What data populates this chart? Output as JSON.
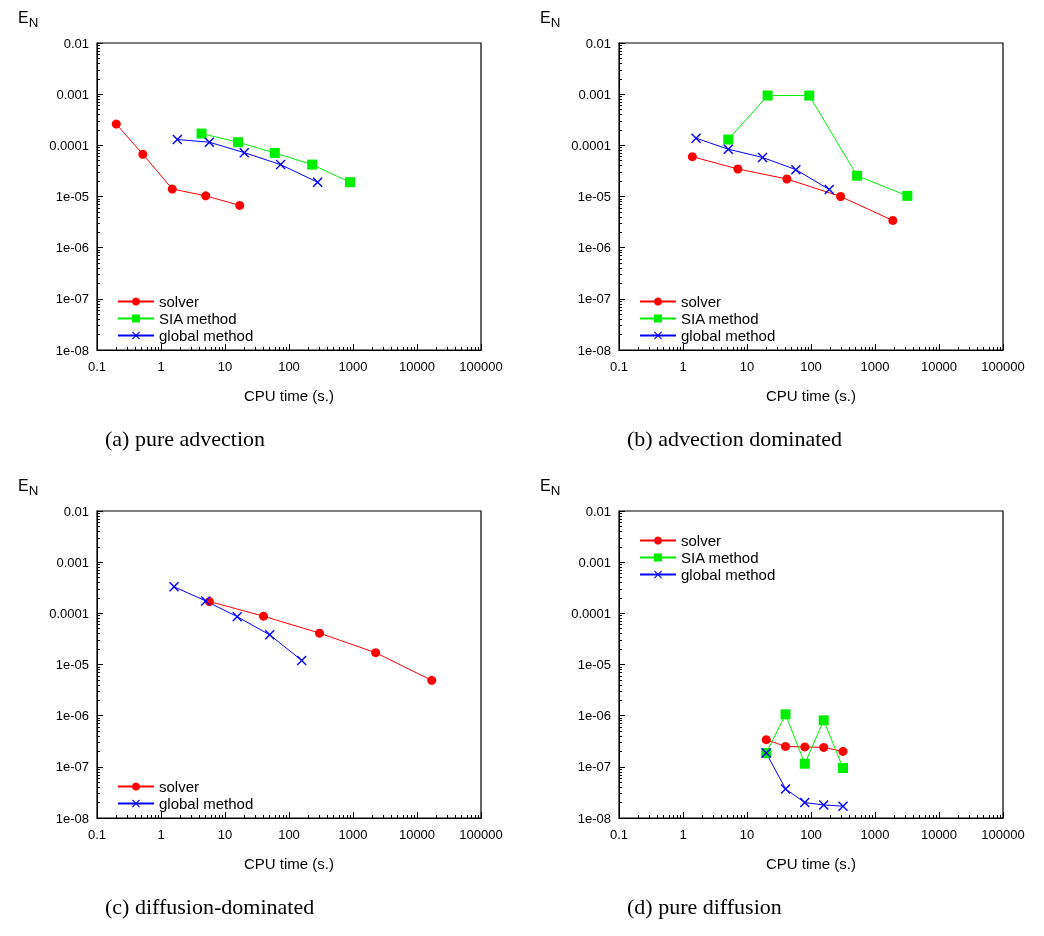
{
  "chart_data": [
    {
      "type": "line",
      "title": "(a) pure advection",
      "xlabel": "CPU time (s.)",
      "ylabel": "E$_{N}$",
      "log": "xy",
      "legend": "bottom left",
      "xlim": [
        0.1,
        100000
      ],
      "xticks": [
        0.1,
        1,
        10,
        100,
        1000,
        10000,
        100000
      ],
      "ylim": [
        1e-08,
        0.01
      ],
      "yticks": [
        {
          "value": 1e-08,
          "label": "1e-08"
        },
        {
          "value": 1e-07,
          "label": "1e-07"
        },
        {
          "value": 1e-06,
          "label": "1e-06"
        },
        {
          "value": 1e-05,
          "label": "1e-05"
        },
        0.0001,
        0.001,
        0.01
      ],
      "series": [
        {
          "name": "solver",
          "color": "#ff0000",
          "marker": "circle",
          "x": [
            0.2,
            0.52,
            1.5,
            5,
            17
          ],
          "values": [
            0.00026,
            6.7e-05,
            1.4e-05,
            1.03e-05,
            6.7e-06
          ]
        },
        {
          "name": "SIA method",
          "color": "#00ee00",
          "marker": "square",
          "x": [
            4.3,
            16,
            60,
            230,
            900
          ],
          "values": [
            0.00017,
            0.000115,
            7.1e-05,
            4.2e-05,
            1.9e-05
          ]
        },
        {
          "name": "global method",
          "color": "#0000ff",
          "marker": "cross",
          "x": [
            1.8,
            5.7,
            20,
            74,
            280
          ],
          "values": [
            0.00013,
            0.000115,
            7.2e-05,
            4.2e-05,
            1.9e-05
          ]
        }
      ]
    },
    {
      "type": "line",
      "title": "(b) advection dominated",
      "xlabel": "CPU time (s.)",
      "ylabel": "E$_{N}$",
      "log": "xy",
      "legend": "bottom left",
      "xlim": [
        0.1,
        100000
      ],
      "xticks": [
        0.1,
        1,
        10,
        100,
        1000,
        10000,
        100000
      ],
      "ylim": [
        1e-08,
        0.01
      ],
      "yticks": [
        {
          "value": 1e-08,
          "label": "1e-08"
        },
        {
          "value": 1e-07,
          "label": "1e-07"
        },
        {
          "value": 1e-06,
          "label": "1e-06"
        },
        {
          "value": 1e-05,
          "label": "1e-05"
        },
        0.0001,
        0.001,
        0.01
      ],
      "series": [
        {
          "name": "solver",
          "color": "#ff0000",
          "marker": "circle",
          "x": [
            1.4,
            7.2,
            42,
            290,
            1900
          ],
          "values": [
            6e-05,
            3.45e-05,
            2.2e-05,
            1e-05,
            3.4e-06
          ]
        },
        {
          "name": "SIA method",
          "color": "#00ee00",
          "marker": "square",
          "x": [
            5.1,
            21,
            94,
            525,
            3200
          ],
          "values": [
            0.00013,
            0.00094,
            0.00094,
            2.55e-05,
            1.03e-05
          ]
        },
        {
          "name": "global method",
          "color": "#0000ff",
          "marker": "cross",
          "x": [
            1.6,
            5.1,
            17.5,
            58,
            193
          ],
          "values": [
            0.000138,
            8.4e-05,
            5.8e-05,
            3.35e-05,
            1.37e-05
          ]
        }
      ]
    },
    {
      "type": "line",
      "title": "(c) diffusion-dominated",
      "xlabel": "CPU time (s.)",
      "ylabel": "E$_{N}$",
      "log": "xy",
      "legend": "bottom left",
      "xlim": [
        0.1,
        100000
      ],
      "xticks": [
        0.1,
        1,
        10,
        100,
        1000,
        10000,
        100000
      ],
      "ylim": [
        1e-08,
        0.01
      ],
      "yticks": [
        {
          "value": 1e-08,
          "label": "1e-08"
        },
        {
          "value": 1e-07,
          "label": "1e-07"
        },
        {
          "value": 1e-06,
          "label": "1e-06"
        },
        {
          "value": 1e-05,
          "label": "1e-05"
        },
        0.0001,
        0.001,
        0.01
      ],
      "series": [
        {
          "name": "solver",
          "color": "#ff0000",
          "marker": "circle",
          "x": [
            5.7,
            40,
            300,
            2260,
            17000
          ],
          "values": [
            0.00017,
            8.8e-05,
            4.1e-05,
            1.7e-05,
            4.9e-06
          ]
        },
        {
          "name": "global method",
          "color": "#0000ff",
          "marker": "cross",
          "x": [
            1.6,
            5,
            15.5,
            50,
            158
          ],
          "values": [
            0.00033,
            0.000175,
            8.6e-05,
            3.8e-05,
            1.2e-05
          ]
        }
      ]
    },
    {
      "type": "line",
      "title": "(d) pure diffusion",
      "xlabel": "CPU time (s.)",
      "ylabel": "E$_{N}$",
      "log": "xy",
      "legend": "top left",
      "xlim": [
        0.1,
        100000
      ],
      "xticks": [
        0.1,
        1,
        10,
        100,
        1000,
        10000,
        100000
      ],
      "ylim": [
        1e-08,
        0.01
      ],
      "yticks": [
        {
          "value": 1e-08,
          "label": "1e-08"
        },
        {
          "value": 1e-07,
          "label": "1e-07"
        },
        {
          "value": 1e-06,
          "label": "1e-06"
        },
        {
          "value": 1e-05,
          "label": "1e-05"
        },
        0.0001,
        0.001,
        0.01
      ],
      "series": [
        {
          "name": "solver",
          "color": "#ff0000",
          "marker": "circle",
          "x": [
            20,
            40,
            80,
            158,
            316
          ],
          "values": [
            3.4e-07,
            2.5e-07,
            2.45e-07,
            2.4e-07,
            2e-07
          ]
        },
        {
          "name": "SIA method",
          "color": "#00ee00",
          "marker": "square",
          "x": [
            20,
            40,
            80,
            158,
            316
          ],
          "values": [
            1.86e-07,
            1.06e-06,
            1.15e-07,
            8.1e-07,
            9.5e-08
          ]
        },
        {
          "name": "global method",
          "color": "#0000ff",
          "marker": "cross",
          "x": [
            20,
            40,
            80,
            158,
            316
          ],
          "values": [
            1.86e-07,
            3.7e-08,
            2e-08,
            1.8e-08,
            1.7e-08
          ]
        }
      ]
    }
  ]
}
